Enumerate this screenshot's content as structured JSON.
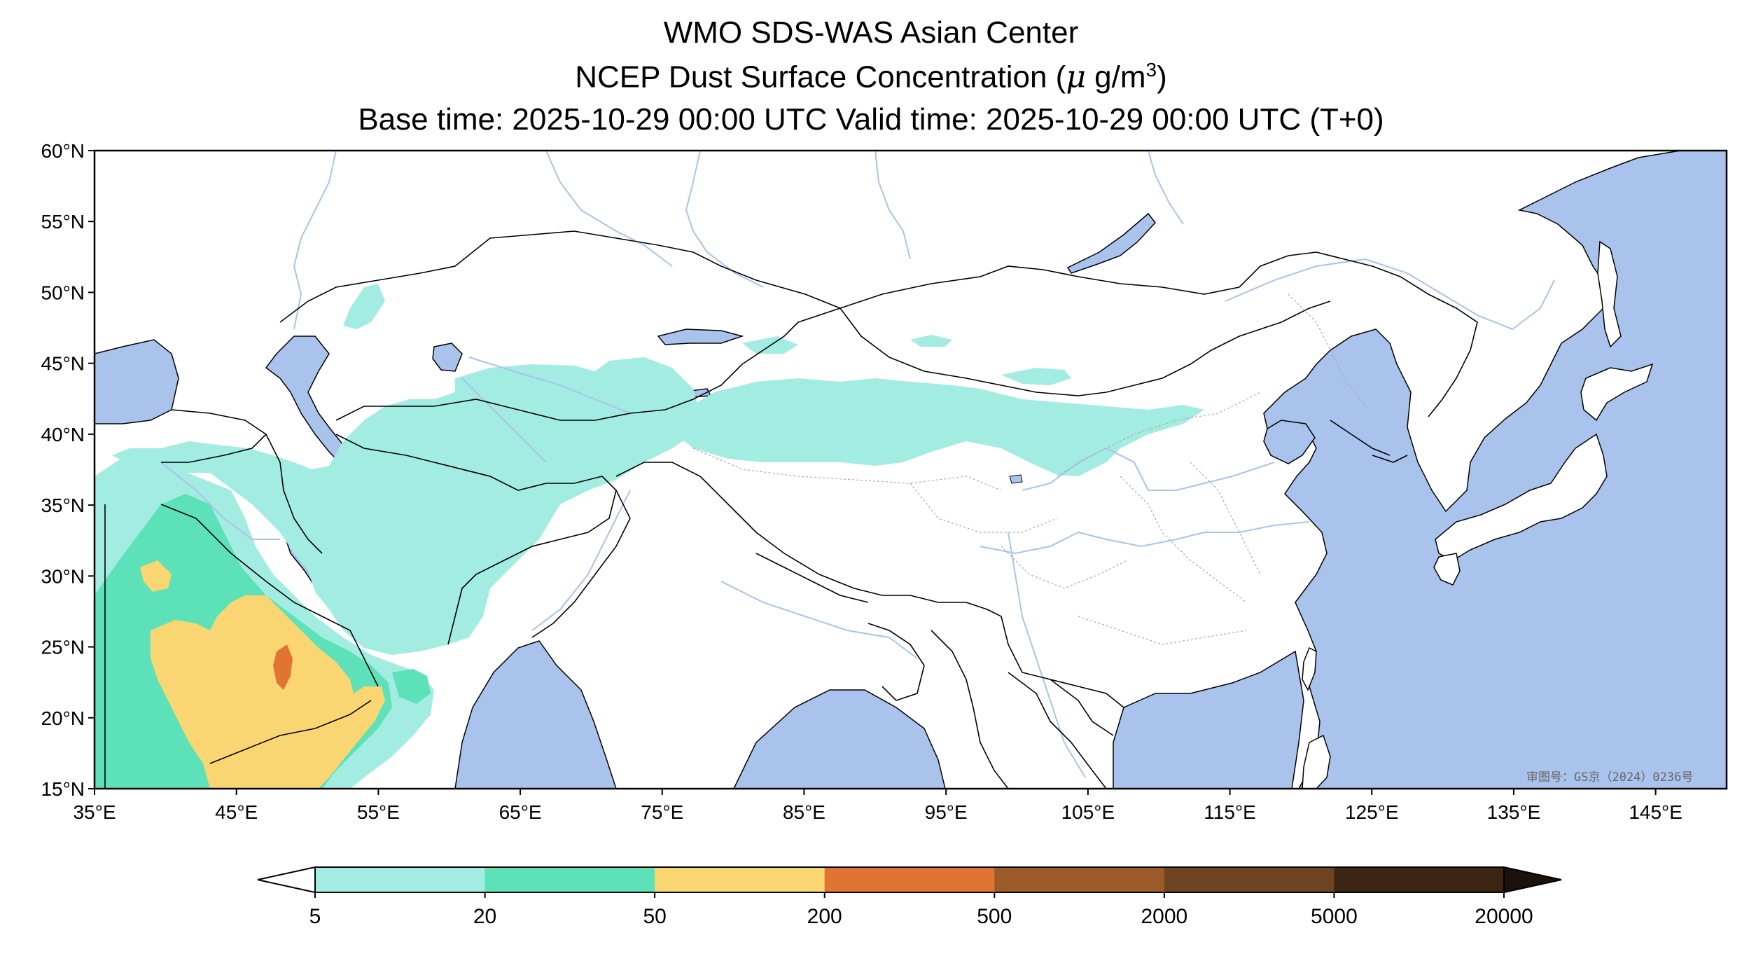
{
  "title": {
    "line1": "WMO SDS-WAS Asian Center",
    "line2_prefix": "NCEP Dust Surface Concentration (",
    "line2_unit_mu": "μ",
    "line2_unit": " g/m",
    "line2_sup": "3",
    "line2_suffix": ")",
    "line3": "Base time: 2025-10-29 00:00 UTC Valid time: 2025-10-29 00:00 UTC (T+0)"
  },
  "map": {
    "extent": {
      "lon_min": 35,
      "lon_max": 150,
      "lat_min": 15,
      "lat_max": 60
    },
    "lon_ticks": [
      {
        "value": 35,
        "label": "35°E"
      },
      {
        "value": 45,
        "label": "45°E"
      },
      {
        "value": 55,
        "label": "55°E"
      },
      {
        "value": 65,
        "label": "65°E"
      },
      {
        "value": 75,
        "label": "75°E"
      },
      {
        "value": 85,
        "label": "85°E"
      },
      {
        "value": 95,
        "label": "95°E"
      },
      {
        "value": 105,
        "label": "105°E"
      },
      {
        "value": 115,
        "label": "115°E"
      },
      {
        "value": 125,
        "label": "125°E"
      },
      {
        "value": 135,
        "label": "135°E"
      },
      {
        "value": 145,
        "label": "145°E"
      }
    ],
    "lat_ticks": [
      {
        "value": 60,
        "label": "60°N"
      },
      {
        "value": 55,
        "label": "55°N"
      },
      {
        "value": 50,
        "label": "50°N"
      },
      {
        "value": 45,
        "label": "45°N"
      },
      {
        "value": 40,
        "label": "40°N"
      },
      {
        "value": 35,
        "label": "35°N"
      },
      {
        "value": 30,
        "label": "30°N"
      },
      {
        "value": 25,
        "label": "25°N"
      },
      {
        "value": 20,
        "label": "20°N"
      },
      {
        "value": 15,
        "label": "15°N"
      }
    ],
    "review_number": "审图号：GS京（2024）0236号",
    "colors": {
      "ocean": "#a9c3ec",
      "land": "#ffffff",
      "border": "#000000",
      "river": "#a9c3ec"
    }
  },
  "colorbar": {
    "levels": [
      "5",
      "20",
      "50",
      "200",
      "500",
      "2000",
      "5000",
      "20000"
    ],
    "colors": [
      "#a3ece1",
      "#5ce1b8",
      "#fad673",
      "#e07532",
      "#9c5b28",
      "#6e4421",
      "#3c2613"
    ],
    "under_color": "#ffffff",
    "over_color": "#1a120b"
  }
}
